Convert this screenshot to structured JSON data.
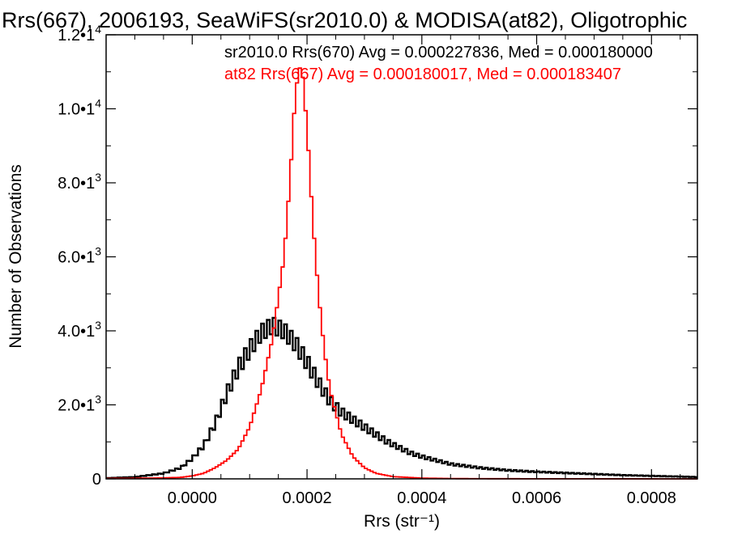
{
  "chart_data": {
    "type": "line",
    "title": "Rrs(667), 2006193, SeaWiFS(sr2010.0) & MODISA(at82), Oligotrophic",
    "xlabel": "Rrs (str⁻¹)",
    "ylabel": "Number of Observations",
    "xlim": [
      -0.00015,
      0.00088
    ],
    "ylim": [
      0,
      12000
    ],
    "x_ticks": [
      0.0,
      0.0002,
      0.0004,
      0.0006,
      0.0008
    ],
    "x_tick_labels": [
      "0.0000",
      "0.0002",
      "0.0004",
      "0.0006",
      "0.0008"
    ],
    "y_ticks": [
      0,
      2000,
      4000,
      6000,
      8000,
      10000,
      12000
    ],
    "y_tick_labels": [
      {
        "mantissa": "0",
        "exp": ""
      },
      {
        "mantissa": "2.0•1",
        "exp": "3"
      },
      {
        "mantissa": "4.0•1",
        "exp": "3"
      },
      {
        "mantissa": "6.0•1",
        "exp": "3"
      },
      {
        "mantissa": "8.0•1",
        "exp": "3"
      },
      {
        "mantissa": "1.0•1",
        "exp": "4"
      },
      {
        "mantissa": "1.2•1",
        "exp": "4"
      }
    ],
    "grid": false,
    "legend_position": "top-right",
    "series": [
      {
        "name": "sr2010.0 Rrs(670) Avg = 0.000227836, Med = 0.000180000",
        "color": "#000000",
        "points": [
          [
            -0.00015,
            20
          ],
          [
            -0.0001,
            50
          ],
          [
            -5e-05,
            150
          ],
          [
            -2e-05,
            300
          ],
          [
            0.0,
            550
          ],
          [
            2e-05,
            900
          ],
          [
            4e-05,
            1500
          ],
          [
            6e-05,
            2300
          ],
          [
            8e-05,
            3000
          ],
          [
            0.0001,
            3500
          ],
          [
            0.00012,
            3950
          ],
          [
            0.00014,
            4150
          ],
          [
            0.00016,
            4000
          ],
          [
            0.00018,
            3650
          ],
          [
            0.0002,
            3150
          ],
          [
            0.00022,
            2600
          ],
          [
            0.00024,
            2100
          ],
          [
            0.00026,
            1800
          ],
          [
            0.00028,
            1600
          ],
          [
            0.0003,
            1400
          ],
          [
            0.00032,
            1200
          ],
          [
            0.00034,
            1000
          ],
          [
            0.00036,
            850
          ],
          [
            0.00038,
            700
          ],
          [
            0.0004,
            600
          ],
          [
            0.00045,
            400
          ],
          [
            0.0005,
            300
          ],
          [
            0.00055,
            230
          ],
          [
            0.0006,
            190
          ],
          [
            0.00065,
            160
          ],
          [
            0.0007,
            130
          ],
          [
            0.00075,
            100
          ],
          [
            0.0008,
            80
          ],
          [
            0.00088,
            50
          ]
        ]
      },
      {
        "name": "at82 Rrs(667) Avg = 0.000180017, Med = 0.000183407",
        "color": "#ff0000",
        "points": [
          [
            -0.00015,
            10
          ],
          [
            -0.0001,
            15
          ],
          [
            -5e-05,
            25
          ],
          [
            -2e-05,
            40
          ],
          [
            0.0,
            80
          ],
          [
            2e-05,
            150
          ],
          [
            4e-05,
            300
          ],
          [
            6e-05,
            500
          ],
          [
            8e-05,
            800
          ],
          [
            0.0001,
            1400
          ],
          [
            0.00012,
            2400
          ],
          [
            0.00014,
            3800
          ],
          [
            0.00016,
            6000
          ],
          [
            0.00017,
            8000
          ],
          [
            0.00018,
            10500
          ],
          [
            0.00019,
            11300
          ],
          [
            0.0002,
            9500
          ],
          [
            0.00021,
            7000
          ],
          [
            0.00022,
            5000
          ],
          [
            0.00023,
            3500
          ],
          [
            0.00024,
            2400
          ],
          [
            0.00026,
            1200
          ],
          [
            0.00028,
            600
          ],
          [
            0.0003,
            300
          ],
          [
            0.00032,
            150
          ],
          [
            0.00035,
            60
          ],
          [
            0.0004,
            20
          ],
          [
            0.00045,
            8
          ],
          [
            0.0005,
            5
          ],
          [
            0.0006,
            3
          ],
          [
            0.00088,
            0
          ]
        ]
      }
    ]
  }
}
